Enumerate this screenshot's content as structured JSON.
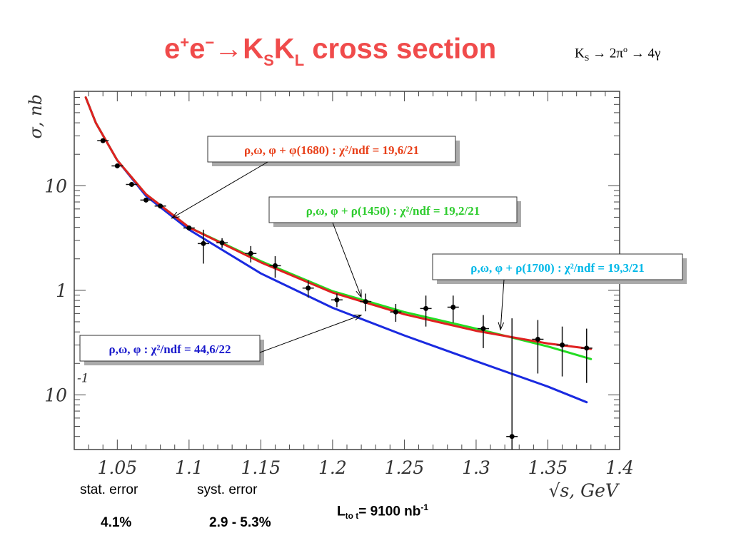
{
  "title": {
    "prefix": "e",
    "sup1": "+",
    "mid": "e",
    "sup2": "−",
    "arrow": "→K",
    "sub1": "S",
    "k2": "K",
    "sub2": "L",
    "suffix": " cross section"
  },
  "decay": {
    "k": "K",
    "sub": "S",
    "chain1": " → 2π",
    "sup": "o",
    "chain2": " → 4γ"
  },
  "colors": {
    "title": "#f04b4b",
    "red_fit": "#e02020",
    "green_fit": "#22dd22",
    "blue_fit": "#1a2ae0",
    "label_red_text": "#e8401a",
    "label_green_text": "#2ecc2e",
    "label_cyan_text": "#00b8e8",
    "label_blue_text": "#1a1acc"
  },
  "chart_data": {
    "type": "scatter",
    "x": [
      1.04,
      1.05,
      1.06,
      1.07,
      1.08,
      1.1,
      1.11,
      1.123,
      1.143,
      1.16,
      1.183,
      1.203,
      1.223,
      1.244,
      1.265,
      1.284,
      1.305,
      1.325,
      1.343,
      1.36,
      1.377
    ],
    "y": [
      27,
      15.5,
      10.3,
      7.3,
      6.4,
      3.95,
      2.8,
      2.85,
      2.25,
      1.72,
      1.05,
      0.81,
      0.78,
      0.62,
      0.67,
      0.69,
      0.43,
      0.04,
      0.34,
      0.3,
      0.28
    ],
    "yerr": [
      0,
      0,
      0,
      0,
      0,
      0,
      1.0,
      0.3,
      0.4,
      0.4,
      0.2,
      0.12,
      0.15,
      0.12,
      0.22,
      0.2,
      0.15,
      0.5,
      0.18,
      0.15,
      0.15
    ],
    "xlim": [
      1.02,
      1.4
    ],
    "ylim": [
      0.03,
      80
    ],
    "yscale": "log",
    "x_ticks": [
      "1.05",
      "1.1",
      "1.15",
      "1.2",
      "1.25",
      "1.3",
      "1.35",
      "1.4"
    ],
    "y_ticks": [
      "10",
      "1",
      "10"
    ],
    "y_tick_exp": "-1",
    "xlabel": "√s,  GeV",
    "ylabel": "σ,  nb",
    "series": [
      {
        "name": "ρ,ω, φ + φ(1680) : χ²/ndf = 19,6/21",
        "color": "#e02020",
        "x": [
          1.028,
          1.035,
          1.05,
          1.07,
          1.1,
          1.15,
          1.2,
          1.25,
          1.3,
          1.35,
          1.38
        ],
        "y": [
          70,
          40,
          17.5,
          8.3,
          4.0,
          1.85,
          0.95,
          0.59,
          0.41,
          0.31,
          0.275
        ]
      },
      {
        "name": "ρ,ω, φ + ρ(1450) : χ²/ndf = 19,2/21",
        "color": "#22dd22",
        "x": [
          1.028,
          1.035,
          1.05,
          1.07,
          1.1,
          1.15,
          1.2,
          1.25,
          1.3,
          1.35,
          1.38
        ],
        "y": [
          70,
          40,
          17.5,
          8.3,
          4.0,
          1.9,
          0.98,
          0.62,
          0.43,
          0.29,
          0.22
        ]
      },
      {
        "name": "ρ,ω, φ + ρ(1700) : χ²/ndf = 19,3/21",
        "color": "#00b8e8",
        "x": [],
        "y": []
      },
      {
        "name": "ρ,ω, φ : χ²/ndf = 44,6/22",
        "color": "#1a2ae0",
        "x": [
          1.028,
          1.035,
          1.05,
          1.07,
          1.1,
          1.15,
          1.2,
          1.25,
          1.3,
          1.35,
          1.377
        ],
        "y": [
          70,
          40,
          17.5,
          8.0,
          3.8,
          1.45,
          0.68,
          0.37,
          0.21,
          0.12,
          0.085
        ]
      }
    ],
    "legend": [
      {
        "text": "ρ,ω, φ + φ(1680) : χ²/ndf = 19,6/21",
        "color": "#e8401a",
        "points_to_x": 1.088,
        "points_to_y": 4.9
      },
      {
        "text": "ρ,ω, φ + ρ(1450) : χ²/ndf = 19,2/21",
        "color": "#2ecc2e",
        "points_to_x": 1.22,
        "points_to_y": 0.86
      },
      {
        "text": "ρ,ω, φ + ρ(1700) : χ²/ndf = 19,3/21",
        "color": "#00b8e8",
        "points_to_x": 1.317,
        "points_to_y": 0.42
      },
      {
        "text": "ρ,ω, φ : χ²/ndf = 44,6/22",
        "color": "#1a1acc",
        "points_to_x": 1.22,
        "points_to_y": 0.58
      }
    ]
  },
  "errors": {
    "stat_label": "stat. error",
    "syst_label": "syst. error",
    "stat_value": "4.1%",
    "syst_value": "2.9 - 5.3%"
  },
  "luminosity": {
    "prefix": "L",
    "sub": "to t",
    "value": "= 9100 nb",
    "sup": "-1"
  }
}
